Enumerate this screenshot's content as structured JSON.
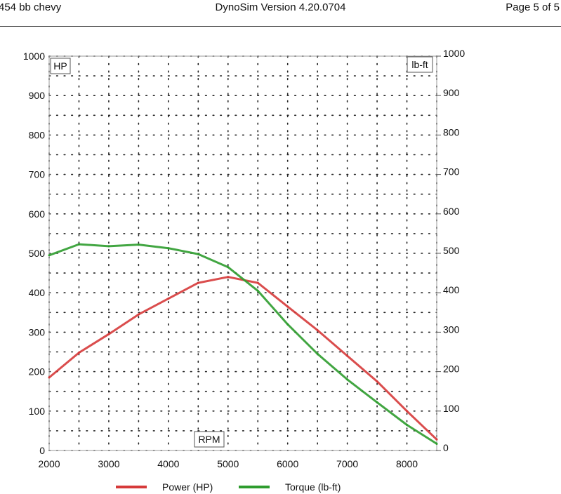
{
  "header": {
    "left": "454 bb chevy",
    "center": "DynoSim  Version 4.20.0704",
    "right": "Page 5 of 5"
  },
  "colors": {
    "power": "#d63a3a",
    "torque": "#2e9c2e"
  },
  "chart_data": {
    "type": "line",
    "title": "",
    "xlabel": "RPM",
    "ylabel_left": "HP",
    "ylabel_right": "lb-ft",
    "xlim": [
      2000,
      8500
    ],
    "ylim": [
      0,
      1000
    ],
    "x_ticks": [
      2000,
      3000,
      4000,
      5000,
      6000,
      7000,
      8000
    ],
    "y_ticks": [
      0,
      100,
      200,
      300,
      400,
      500,
      600,
      700,
      800,
      900,
      1000
    ],
    "grid": "dotted",
    "x": [
      2000,
      2500,
      3000,
      3500,
      4000,
      4500,
      5000,
      5500,
      6000,
      6500,
      7000,
      7500,
      8000,
      8500
    ],
    "series": [
      {
        "name": "Power (HP)",
        "color": "#d63a3a",
        "values": [
          185,
          248,
          295,
          345,
          385,
          425,
          440,
          425,
          365,
          305,
          240,
          175,
          100,
          28
        ]
      },
      {
        "name": "Torque (lb-ft)",
        "color": "#2e9c2e",
        "values": [
          495,
          523,
          518,
          522,
          513,
          498,
          465,
          405,
          320,
          245,
          180,
          122,
          65,
          17
        ]
      }
    ]
  }
}
